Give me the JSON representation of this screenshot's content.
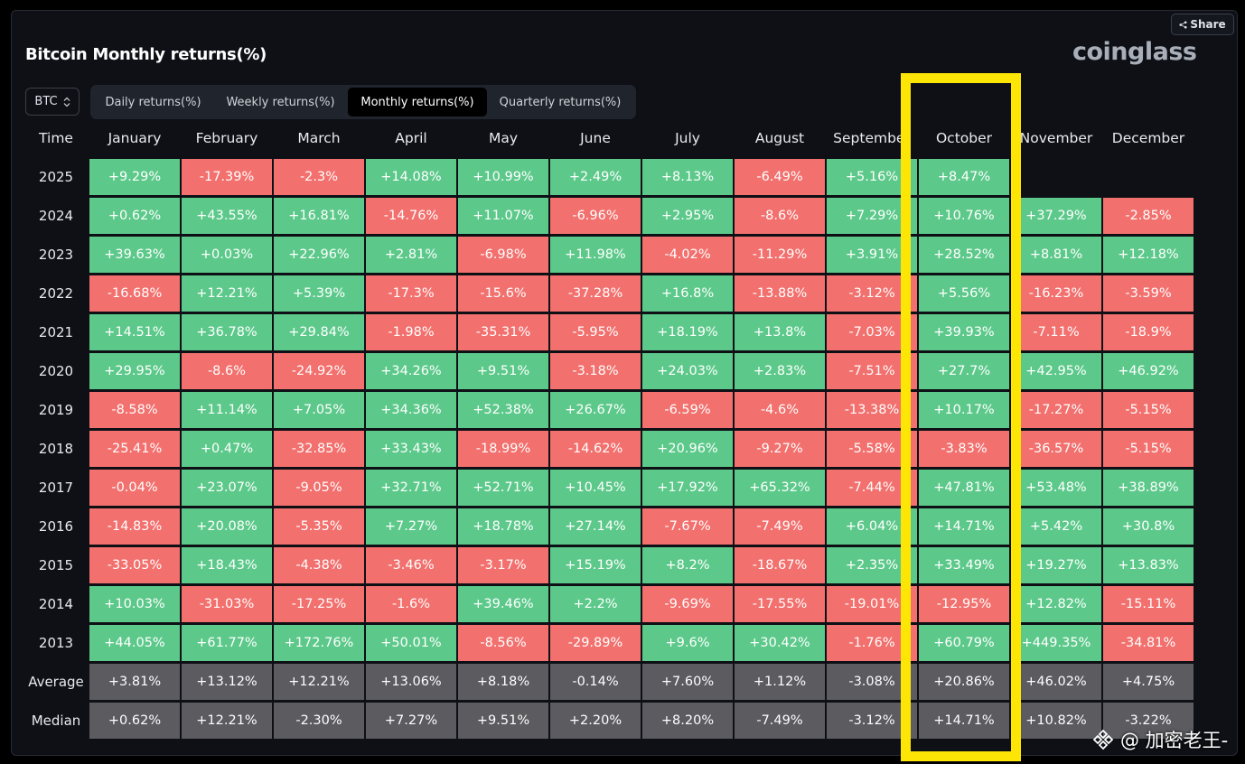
{
  "header": {
    "title": "Bitcoin Monthly returns(%)",
    "brand": "coinglass",
    "share_label": "Share",
    "coin_selector": "BTC"
  },
  "tabs": [
    {
      "label": "Daily returns(%)",
      "active": false
    },
    {
      "label": "Weekly returns(%)",
      "active": false
    },
    {
      "label": "Monthly returns(%)",
      "active": true
    },
    {
      "label": "Quarterly returns(%)",
      "active": false
    }
  ],
  "table": {
    "time_header": "Time",
    "months": [
      "January",
      "February",
      "March",
      "April",
      "May",
      "June",
      "July",
      "August",
      "September",
      "October",
      "November",
      "December"
    ],
    "rows": [
      {
        "year": "2025",
        "values": [
          "+9.29%",
          "-17.39%",
          "-2.3%",
          "+14.08%",
          "+10.99%",
          "+2.49%",
          "+8.13%",
          "-6.49%",
          "+5.16%",
          "+8.47%",
          "",
          ""
        ]
      },
      {
        "year": "2024",
        "values": [
          "+0.62%",
          "+43.55%",
          "+16.81%",
          "-14.76%",
          "+11.07%",
          "-6.96%",
          "+2.95%",
          "-8.6%",
          "+7.29%",
          "+10.76%",
          "+37.29%",
          "-2.85%"
        ]
      },
      {
        "year": "2023",
        "values": [
          "+39.63%",
          "+0.03%",
          "+22.96%",
          "+2.81%",
          "-6.98%",
          "+11.98%",
          "-4.02%",
          "-11.29%",
          "+3.91%",
          "+28.52%",
          "+8.81%",
          "+12.18%"
        ]
      },
      {
        "year": "2022",
        "values": [
          "-16.68%",
          "+12.21%",
          "+5.39%",
          "-17.3%",
          "-15.6%",
          "-37.28%",
          "+16.8%",
          "-13.88%",
          "-3.12%",
          "+5.56%",
          "-16.23%",
          "-3.59%"
        ]
      },
      {
        "year": "2021",
        "values": [
          "+14.51%",
          "+36.78%",
          "+29.84%",
          "-1.98%",
          "-35.31%",
          "-5.95%",
          "+18.19%",
          "+13.8%",
          "-7.03%",
          "+39.93%",
          "-7.11%",
          "-18.9%"
        ]
      },
      {
        "year": "2020",
        "values": [
          "+29.95%",
          "-8.6%",
          "-24.92%",
          "+34.26%",
          "+9.51%",
          "-3.18%",
          "+24.03%",
          "+2.83%",
          "-7.51%",
          "+27.7%",
          "+42.95%",
          "+46.92%"
        ]
      },
      {
        "year": "2019",
        "values": [
          "-8.58%",
          "+11.14%",
          "+7.05%",
          "+34.36%",
          "+52.38%",
          "+26.67%",
          "-6.59%",
          "-4.6%",
          "-13.38%",
          "+10.17%",
          "-17.27%",
          "-5.15%"
        ]
      },
      {
        "year": "2018",
        "values": [
          "-25.41%",
          "+0.47%",
          "-32.85%",
          "+33.43%",
          "-18.99%",
          "-14.62%",
          "+20.96%",
          "-9.27%",
          "-5.58%",
          "-3.83%",
          "-36.57%",
          "-5.15%"
        ]
      },
      {
        "year": "2017",
        "values": [
          "-0.04%",
          "+23.07%",
          "-9.05%",
          "+32.71%",
          "+52.71%",
          "+10.45%",
          "+17.92%",
          "+65.32%",
          "-7.44%",
          "+47.81%",
          "+53.48%",
          "+38.89%"
        ]
      },
      {
        "year": "2016",
        "values": [
          "-14.83%",
          "+20.08%",
          "-5.35%",
          "+7.27%",
          "+18.78%",
          "+27.14%",
          "-7.67%",
          "-7.49%",
          "+6.04%",
          "+14.71%",
          "+5.42%",
          "+30.8%"
        ]
      },
      {
        "year": "2015",
        "values": [
          "-33.05%",
          "+18.43%",
          "-4.38%",
          "-3.46%",
          "-3.17%",
          "+15.19%",
          "+8.2%",
          "-18.67%",
          "+2.35%",
          "+33.49%",
          "+19.27%",
          "+13.83%"
        ]
      },
      {
        "year": "2014",
        "values": [
          "+10.03%",
          "-31.03%",
          "-17.25%",
          "-1.6%",
          "+39.46%",
          "+2.2%",
          "-9.69%",
          "-17.55%",
          "-19.01%",
          "-12.95%",
          "+12.82%",
          "-15.11%"
        ]
      },
      {
        "year": "2013",
        "values": [
          "+44.05%",
          "+61.77%",
          "+172.76%",
          "+50.01%",
          "-8.56%",
          "-29.89%",
          "+9.6%",
          "+30.42%",
          "-1.76%",
          "+60.79%",
          "+449.35%",
          "-34.81%"
        ]
      }
    ],
    "stats": [
      {
        "label": "Average",
        "values": [
          "+3.81%",
          "+13.12%",
          "+12.21%",
          "+13.06%",
          "+8.18%",
          "-0.14%",
          "+7.60%",
          "+1.12%",
          "-3.08%",
          "+20.86%",
          "+46.02%",
          "+4.75%"
        ]
      },
      {
        "label": "Median",
        "values": [
          "+0.62%",
          "+12.21%",
          "-2.30%",
          "+7.27%",
          "+9.51%",
          "+2.20%",
          "+8.20%",
          "-7.49%",
          "-3.12%",
          "+14.71%",
          "+10.82%",
          "-3.22%"
        ]
      }
    ]
  },
  "colors": {
    "positive": "#5cc98a",
    "negative": "#f2706d",
    "stat": "#5b5b60",
    "highlight": "#fde606"
  },
  "highlighted_column": "October",
  "watermark": "@ 加密老王-"
}
